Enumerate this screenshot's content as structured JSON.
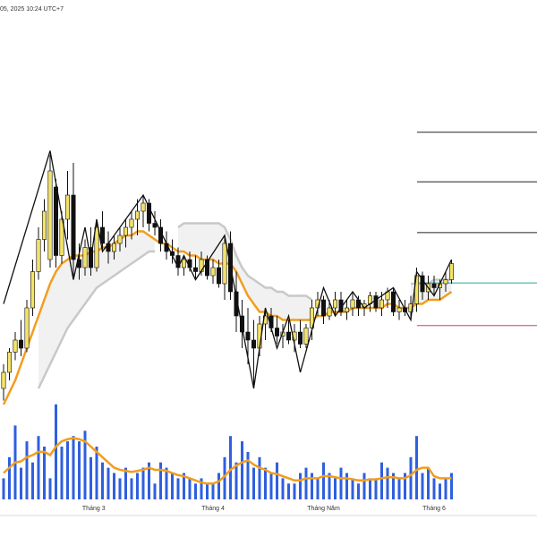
{
  "chart_data": {
    "type": "candlestick",
    "title": "05, 2025 10:24 UTC+7",
    "ylim": [
      0,
      100
    ],
    "ohlc": [
      [
        8,
        14,
        5,
        12
      ],
      [
        12,
        18,
        10,
        17
      ],
      [
        17,
        22,
        15,
        20
      ],
      [
        20,
        25,
        16,
        18
      ],
      [
        18,
        30,
        17,
        28
      ],
      [
        28,
        40,
        26,
        37
      ],
      [
        37,
        48,
        35,
        45
      ],
      [
        45,
        55,
        42,
        52
      ],
      [
        40,
        66,
        38,
        62
      ],
      [
        58,
        60,
        38,
        41
      ],
      [
        41,
        52,
        39,
        50
      ],
      [
        50,
        62,
        45,
        56
      ],
      [
        56,
        64,
        35,
        40
      ],
      [
        40,
        44,
        35,
        38
      ],
      [
        38,
        45,
        36,
        43
      ],
      [
        43,
        48,
        36,
        38
      ],
      [
        38,
        50,
        37,
        48
      ],
      [
        48,
        52,
        42,
        44
      ],
      [
        44,
        47,
        39,
        42
      ],
      [
        42,
        46,
        40,
        44
      ],
      [
        44,
        48,
        42,
        46
      ],
      [
        46,
        50,
        43,
        48
      ],
      [
        48,
        52,
        45,
        50
      ],
      [
        50,
        55,
        46,
        52
      ],
      [
        52,
        56,
        48,
        54
      ],
      [
        54,
        55,
        47,
        49
      ],
      [
        49,
        52,
        46,
        48
      ],
      [
        48,
        50,
        42,
        44
      ],
      [
        44,
        47,
        40,
        42
      ],
      [
        42,
        45,
        39,
        41
      ],
      [
        41,
        43,
        36,
        38
      ],
      [
        38,
        41,
        36,
        40
      ],
      [
        40,
        42,
        37,
        38
      ],
      [
        38,
        41,
        35,
        37
      ],
      [
        37,
        42,
        36,
        40
      ],
      [
        40,
        41,
        35,
        36
      ],
      [
        36,
        40,
        34,
        38
      ],
      [
        38,
        40,
        33,
        34
      ],
      [
        34,
        46,
        30,
        44
      ],
      [
        44,
        47,
        30,
        32
      ],
      [
        32,
        37,
        22,
        26
      ],
      [
        26,
        30,
        18,
        22
      ],
      [
        22,
        28,
        14,
        20
      ],
      [
        20,
        25,
        8,
        18
      ],
      [
        18,
        26,
        16,
        24
      ],
      [
        24,
        28,
        20,
        26
      ],
      [
        26,
        28,
        22,
        23
      ],
      [
        23,
        26,
        19,
        21
      ],
      [
        21,
        24,
        18,
        22
      ],
      [
        22,
        25,
        19,
        20
      ],
      [
        20,
        24,
        17,
        22
      ],
      [
        22,
        25,
        18,
        19
      ],
      [
        19,
        24,
        18,
        23
      ],
      [
        23,
        30,
        20,
        28
      ],
      [
        28,
        32,
        26,
        30
      ],
      [
        30,
        31,
        24,
        26
      ],
      [
        26,
        30,
        25,
        28
      ],
      [
        28,
        32,
        26,
        30
      ],
      [
        30,
        32,
        26,
        27
      ],
      [
        27,
        30,
        25,
        28
      ],
      [
        28,
        32,
        26,
        30
      ],
      [
        30,
        31,
        26,
        28
      ],
      [
        28,
        30,
        26,
        29
      ],
      [
        29,
        32,
        27,
        31
      ],
      [
        31,
        32,
        27,
        28
      ],
      [
        28,
        32,
        26,
        30
      ],
      [
        30,
        33,
        28,
        32
      ],
      [
        32,
        33,
        26,
        27
      ],
      [
        27,
        30,
        25,
        28
      ],
      [
        28,
        30,
        26,
        27
      ],
      [
        27,
        31,
        25,
        29
      ],
      [
        29,
        38,
        27,
        36
      ],
      [
        36,
        37,
        30,
        32
      ],
      [
        32,
        36,
        30,
        34
      ],
      [
        34,
        36,
        31,
        33
      ],
      [
        33,
        35,
        30,
        34
      ],
      [
        34,
        37,
        32,
        35
      ],
      [
        35,
        40,
        34,
        39
      ]
    ],
    "up_color": "#f3e36a",
    "down_color": "#111111",
    "ma": {
      "color": "#f29d1d",
      "values": [
        4,
        7,
        10,
        14,
        18,
        22,
        26,
        30,
        34,
        37,
        39,
        40,
        41,
        41,
        41,
        42,
        42,
        43,
        43,
        44,
        45,
        46,
        46,
        47,
        47,
        46,
        45,
        44,
        44,
        43,
        42,
        42,
        41,
        41,
        40,
        40,
        40,
        39,
        39,
        39,
        37,
        34,
        31,
        29,
        27,
        27,
        26,
        26,
        25,
        25,
        25,
        25,
        25,
        25,
        26,
        26,
        27,
        27,
        27,
        27,
        28,
        28,
        28,
        28,
        28,
        28,
        29,
        29,
        28,
        28,
        28,
        29,
        29,
        30,
        30,
        30,
        31,
        32
      ]
    },
    "band": {
      "color": "#c8c8c8",
      "values": [
        null,
        null,
        null,
        null,
        null,
        null,
        8,
        11,
        14,
        17,
        20,
        23,
        25,
        27,
        29,
        31,
        33,
        34,
        35,
        36,
        37,
        38,
        39,
        40,
        41,
        42,
        42,
        null,
        null,
        null,
        48,
        49,
        49,
        49,
        49,
        49,
        49,
        49,
        48,
        45,
        41,
        38,
        36,
        35,
        34,
        33,
        33,
        32,
        32,
        31,
        31,
        31,
        31,
        30,
        null,
        null,
        null,
        null,
        null,
        null,
        null,
        null,
        null,
        null,
        null,
        null,
        null,
        null,
        null,
        null,
        34,
        34,
        34,
        34,
        35,
        35,
        35,
        35
      ]
    },
    "zigzag": {
      "color": "#111111",
      "x": [
        0,
        8,
        12,
        14,
        15,
        16,
        17,
        24,
        30,
        31,
        33,
        38,
        43,
        45,
        47,
        49,
        51,
        55,
        57,
        60,
        62,
        67,
        70,
        71,
        74,
        77
      ],
      "values": [
        29,
        67,
        35,
        48,
        40,
        50,
        42,
        56,
        38,
        41,
        35,
        46,
        8,
        28,
        18,
        26,
        12,
        33,
        26,
        32,
        28,
        33,
        25,
        37,
        31,
        40
      ]
    },
    "levels": [
      {
        "value": 71.6,
        "color": "#222222"
      },
      {
        "value": 59.3,
        "color": "#222222"
      },
      {
        "value": 46.7,
        "color": "#222222"
      },
      {
        "value": 34.2,
        "color": "#26a69a"
      },
      {
        "value": 23.6,
        "color": "#e53950"
      }
    ],
    "volume": {
      "color": "#2f5fe0",
      "ylim": [
        0,
        100
      ],
      "values": [
        20,
        40,
        70,
        30,
        55,
        35,
        60,
        50,
        20,
        90,
        50,
        55,
        60,
        55,
        65,
        40,
        50,
        35,
        30,
        25,
        20,
        30,
        20,
        25,
        30,
        35,
        15,
        35,
        30,
        25,
        20,
        25,
        20,
        15,
        20,
        15,
        15,
        25,
        40,
        60,
        35,
        55,
        45,
        30,
        40,
        30,
        25,
        35,
        20,
        15,
        15,
        25,
        30,
        25,
        20,
        35,
        25,
        20,
        30,
        25,
        20,
        15,
        25,
        20,
        20,
        35,
        30,
        25,
        20,
        25,
        40,
        60,
        25,
        30,
        20,
        15,
        20,
        25
      ]
    },
    "volume_ma": {
      "color": "#f29d1d",
      "values": [
        25,
        30,
        35,
        36,
        40,
        42,
        45,
        45,
        42,
        50,
        55,
        57,
        58,
        57,
        55,
        50,
        45,
        40,
        35,
        30,
        28,
        27,
        26,
        27,
        28,
        30,
        28,
        28,
        27,
        25,
        23,
        22,
        20,
        18,
        16,
        15,
        15,
        17,
        22,
        28,
        32,
        35,
        37,
        33,
        30,
        28,
        25,
        24,
        22,
        20,
        18,
        18,
        20,
        20,
        20,
        22,
        22,
        21,
        20,
        20,
        19,
        18,
        18,
        19,
        19,
        20,
        21,
        21,
        20,
        20,
        23,
        28,
        30,
        30,
        22,
        20,
        20,
        20
      ]
    },
    "x_labels": {
      "labels": [
        "Tháng 3",
        "Tháng 4",
        "Tháng Năm",
        "Tháng 6"
      ],
      "index": [
        15.5,
        36,
        55,
        74
      ]
    }
  }
}
